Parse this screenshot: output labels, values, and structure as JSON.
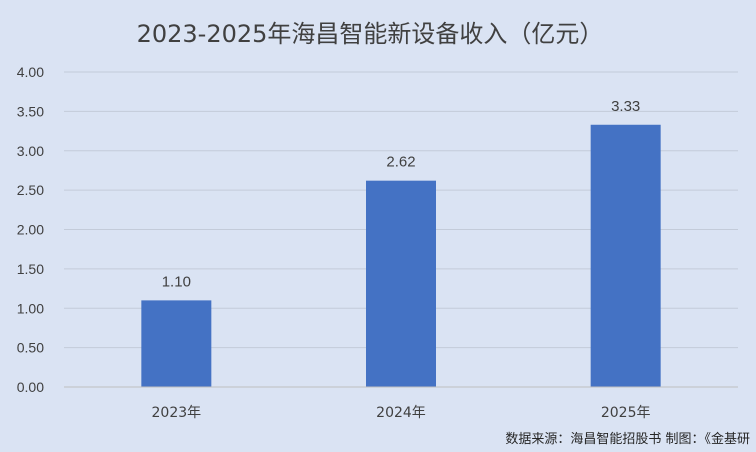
{
  "chart_data": {
    "type": "bar",
    "title": "2023-2025年海昌智能新设备收入（亿元）",
    "categories": [
      "2023年",
      "2024年",
      "2025年"
    ],
    "values": [
      1.1,
      2.62,
      3.33
    ],
    "data_labels": [
      "1.10",
      "2.62",
      "3.33"
    ],
    "y_ticks": [
      "0.00",
      "0.50",
      "1.00",
      "1.50",
      "2.00",
      "2.50",
      "3.00",
      "3.50",
      "4.00"
    ],
    "ylim": [
      0,
      4
    ],
    "xlabel": "",
    "ylabel": "",
    "grid": true,
    "legend": "none",
    "bar_color": "#4472c4",
    "background_color": "#dae3f3"
  },
  "footer": {
    "source_note": "数据来源：海昌智能招股书 制图：《金基研"
  }
}
